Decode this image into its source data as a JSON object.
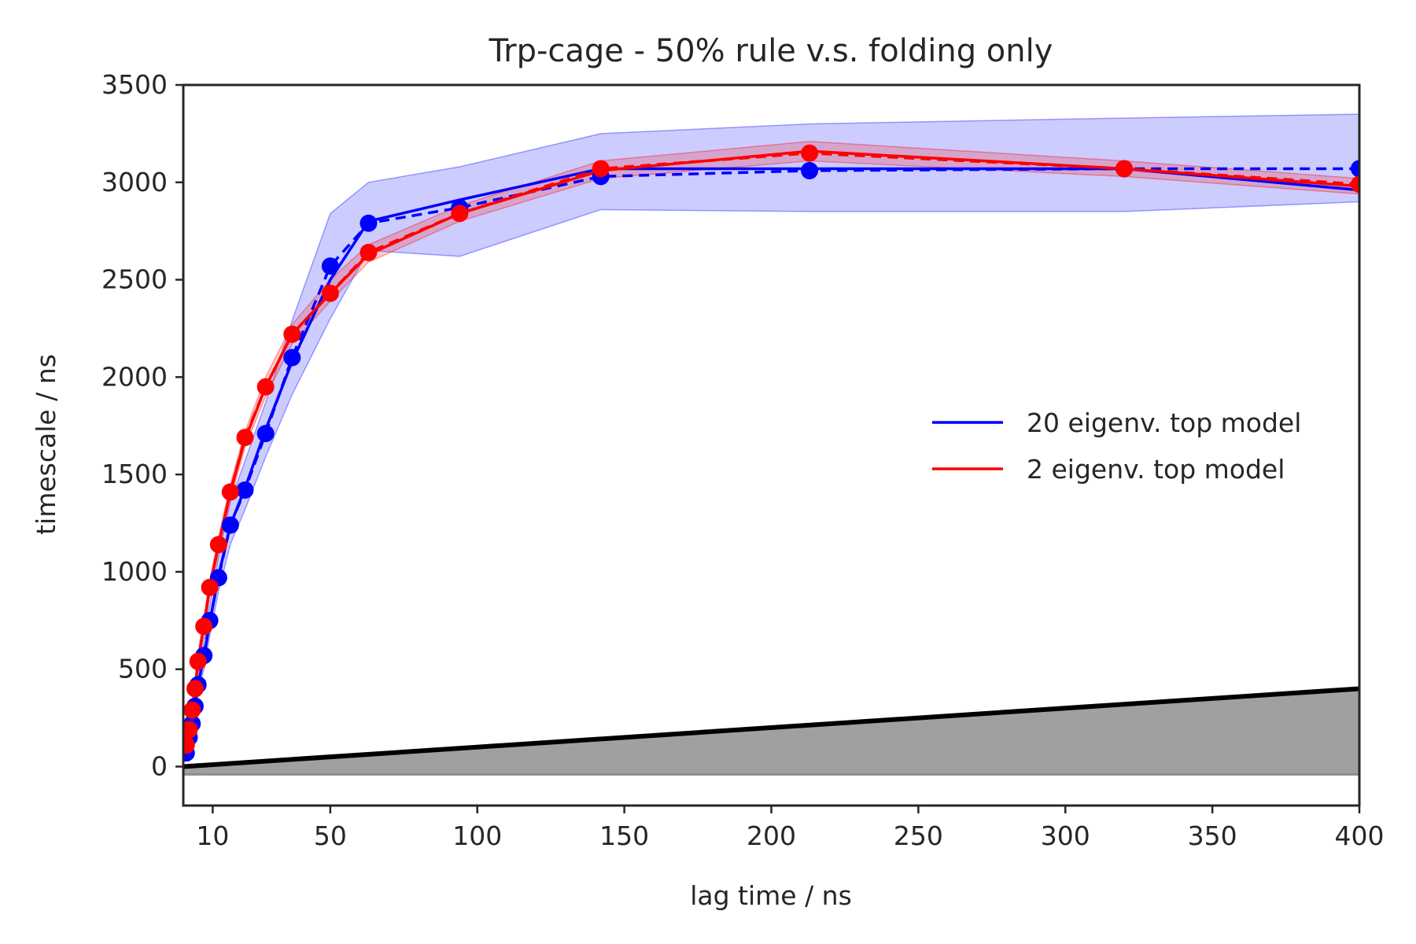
{
  "chart_data": {
    "type": "line",
    "title": "Trp-cage - 50% rule v.s. folding only",
    "xlabel": "lag time / ns",
    "ylabel": "timescale / ns",
    "xlim": [
      0,
      400
    ],
    "ylim": [
      -200,
      3500
    ],
    "xticks": [
      10,
      50,
      100,
      150,
      200,
      250,
      300,
      350,
      400
    ],
    "yticks": [
      0,
      500,
      1000,
      1500,
      2000,
      2500,
      3000,
      3500
    ],
    "legend": {
      "placement": "center-right",
      "entries": [
        "20 eigenv. top model",
        "2 eigenv. top model"
      ]
    },
    "grid": false,
    "colors": {
      "blue": "#0000ff",
      "red": "#ff0000",
      "gray": "#a0a0a0",
      "black": "#000000",
      "band_blue": "#0000ff",
      "band_red": "#ff0000"
    },
    "series": [
      {
        "name": "20 eigenv. top model",
        "color": "#0000ff",
        "style": "solid",
        "markers": false,
        "x": [
          1,
          2,
          3,
          4,
          5,
          7,
          9,
          12,
          16,
          21,
          28,
          37,
          50,
          63,
          94,
          142,
          213,
          320,
          400
        ],
        "values": [
          60,
          140,
          220,
          310,
          420,
          560,
          740,
          980,
          1240,
          1430,
          1730,
          2080,
          2500,
          2800,
          2910,
          3070,
          3070,
          3070,
          2960
        ],
        "band_lower": [
          50,
          120,
          190,
          270,
          370,
          500,
          670,
          900,
          1140,
          1320,
          1590,
          1910,
          2300,
          2650,
          2620,
          2860,
          2850,
          2850,
          2900
        ],
        "band_upper": [
          75,
          165,
          250,
          350,
          470,
          640,
          830,
          1080,
          1360,
          1570,
          1870,
          2290,
          2840,
          3000,
          3080,
          3250,
          3300,
          3330,
          3350
        ]
      },
      {
        "name": "",
        "color": "#0000ff",
        "style": "dashed",
        "markers": true,
        "x": [
          1,
          2,
          3,
          4,
          5,
          7,
          9,
          12,
          16,
          21,
          28,
          37,
          50,
          63,
          94,
          142,
          213,
          320,
          400
        ],
        "values": [
          70,
          150,
          220,
          310,
          420,
          570,
          750,
          970,
          1240,
          1420,
          1710,
          2100,
          2570,
          2790,
          2870,
          3030,
          3060,
          3070,
          3070
        ]
      },
      {
        "name": "2 eigenv. top model",
        "color": "#ff0000",
        "style": "solid",
        "markers": false,
        "x": [
          1,
          2,
          3,
          4,
          5,
          7,
          9,
          12,
          16,
          21,
          28,
          37,
          50,
          63,
          94,
          142,
          213,
          320,
          400
        ],
        "values": [
          110,
          190,
          290,
          400,
          540,
          720,
          920,
          1140,
          1410,
          1680,
          1950,
          2220,
          2430,
          2630,
          2840,
          3060,
          3160,
          3070,
          2980
        ],
        "band_lower": [
          95,
          170,
          260,
          370,
          500,
          680,
          880,
          1100,
          1370,
          1640,
          1900,
          2170,
          2390,
          2590,
          2800,
          3020,
          3110,
          3030,
          2940
        ],
        "band_upper": [
          125,
          210,
          320,
          430,
          580,
          770,
          960,
          1180,
          1450,
          1720,
          2000,
          2270,
          2500,
          2680,
          2880,
          3110,
          3210,
          3110,
          3020
        ]
      },
      {
        "name": "",
        "color": "#ff0000",
        "style": "dashed",
        "markers": true,
        "x": [
          1,
          2,
          3,
          4,
          5,
          7,
          9,
          12,
          16,
          21,
          28,
          37,
          50,
          63,
          94,
          142,
          213,
          320,
          400
        ],
        "values": [
          110,
          190,
          290,
          400,
          540,
          720,
          920,
          1140,
          1410,
          1690,
          1950,
          2220,
          2430,
          2640,
          2840,
          3070,
          3150,
          3070,
          2990
        ]
      },
      {
        "name": "",
        "color": "#000000",
        "style": "solid",
        "markers": false,
        "x": [
          0,
          400
        ],
        "values": [
          0,
          400
        ]
      }
    ],
    "shaded_region": {
      "color": "#a0a0a0",
      "lower": -40,
      "upper_line": "y = x"
    }
  }
}
